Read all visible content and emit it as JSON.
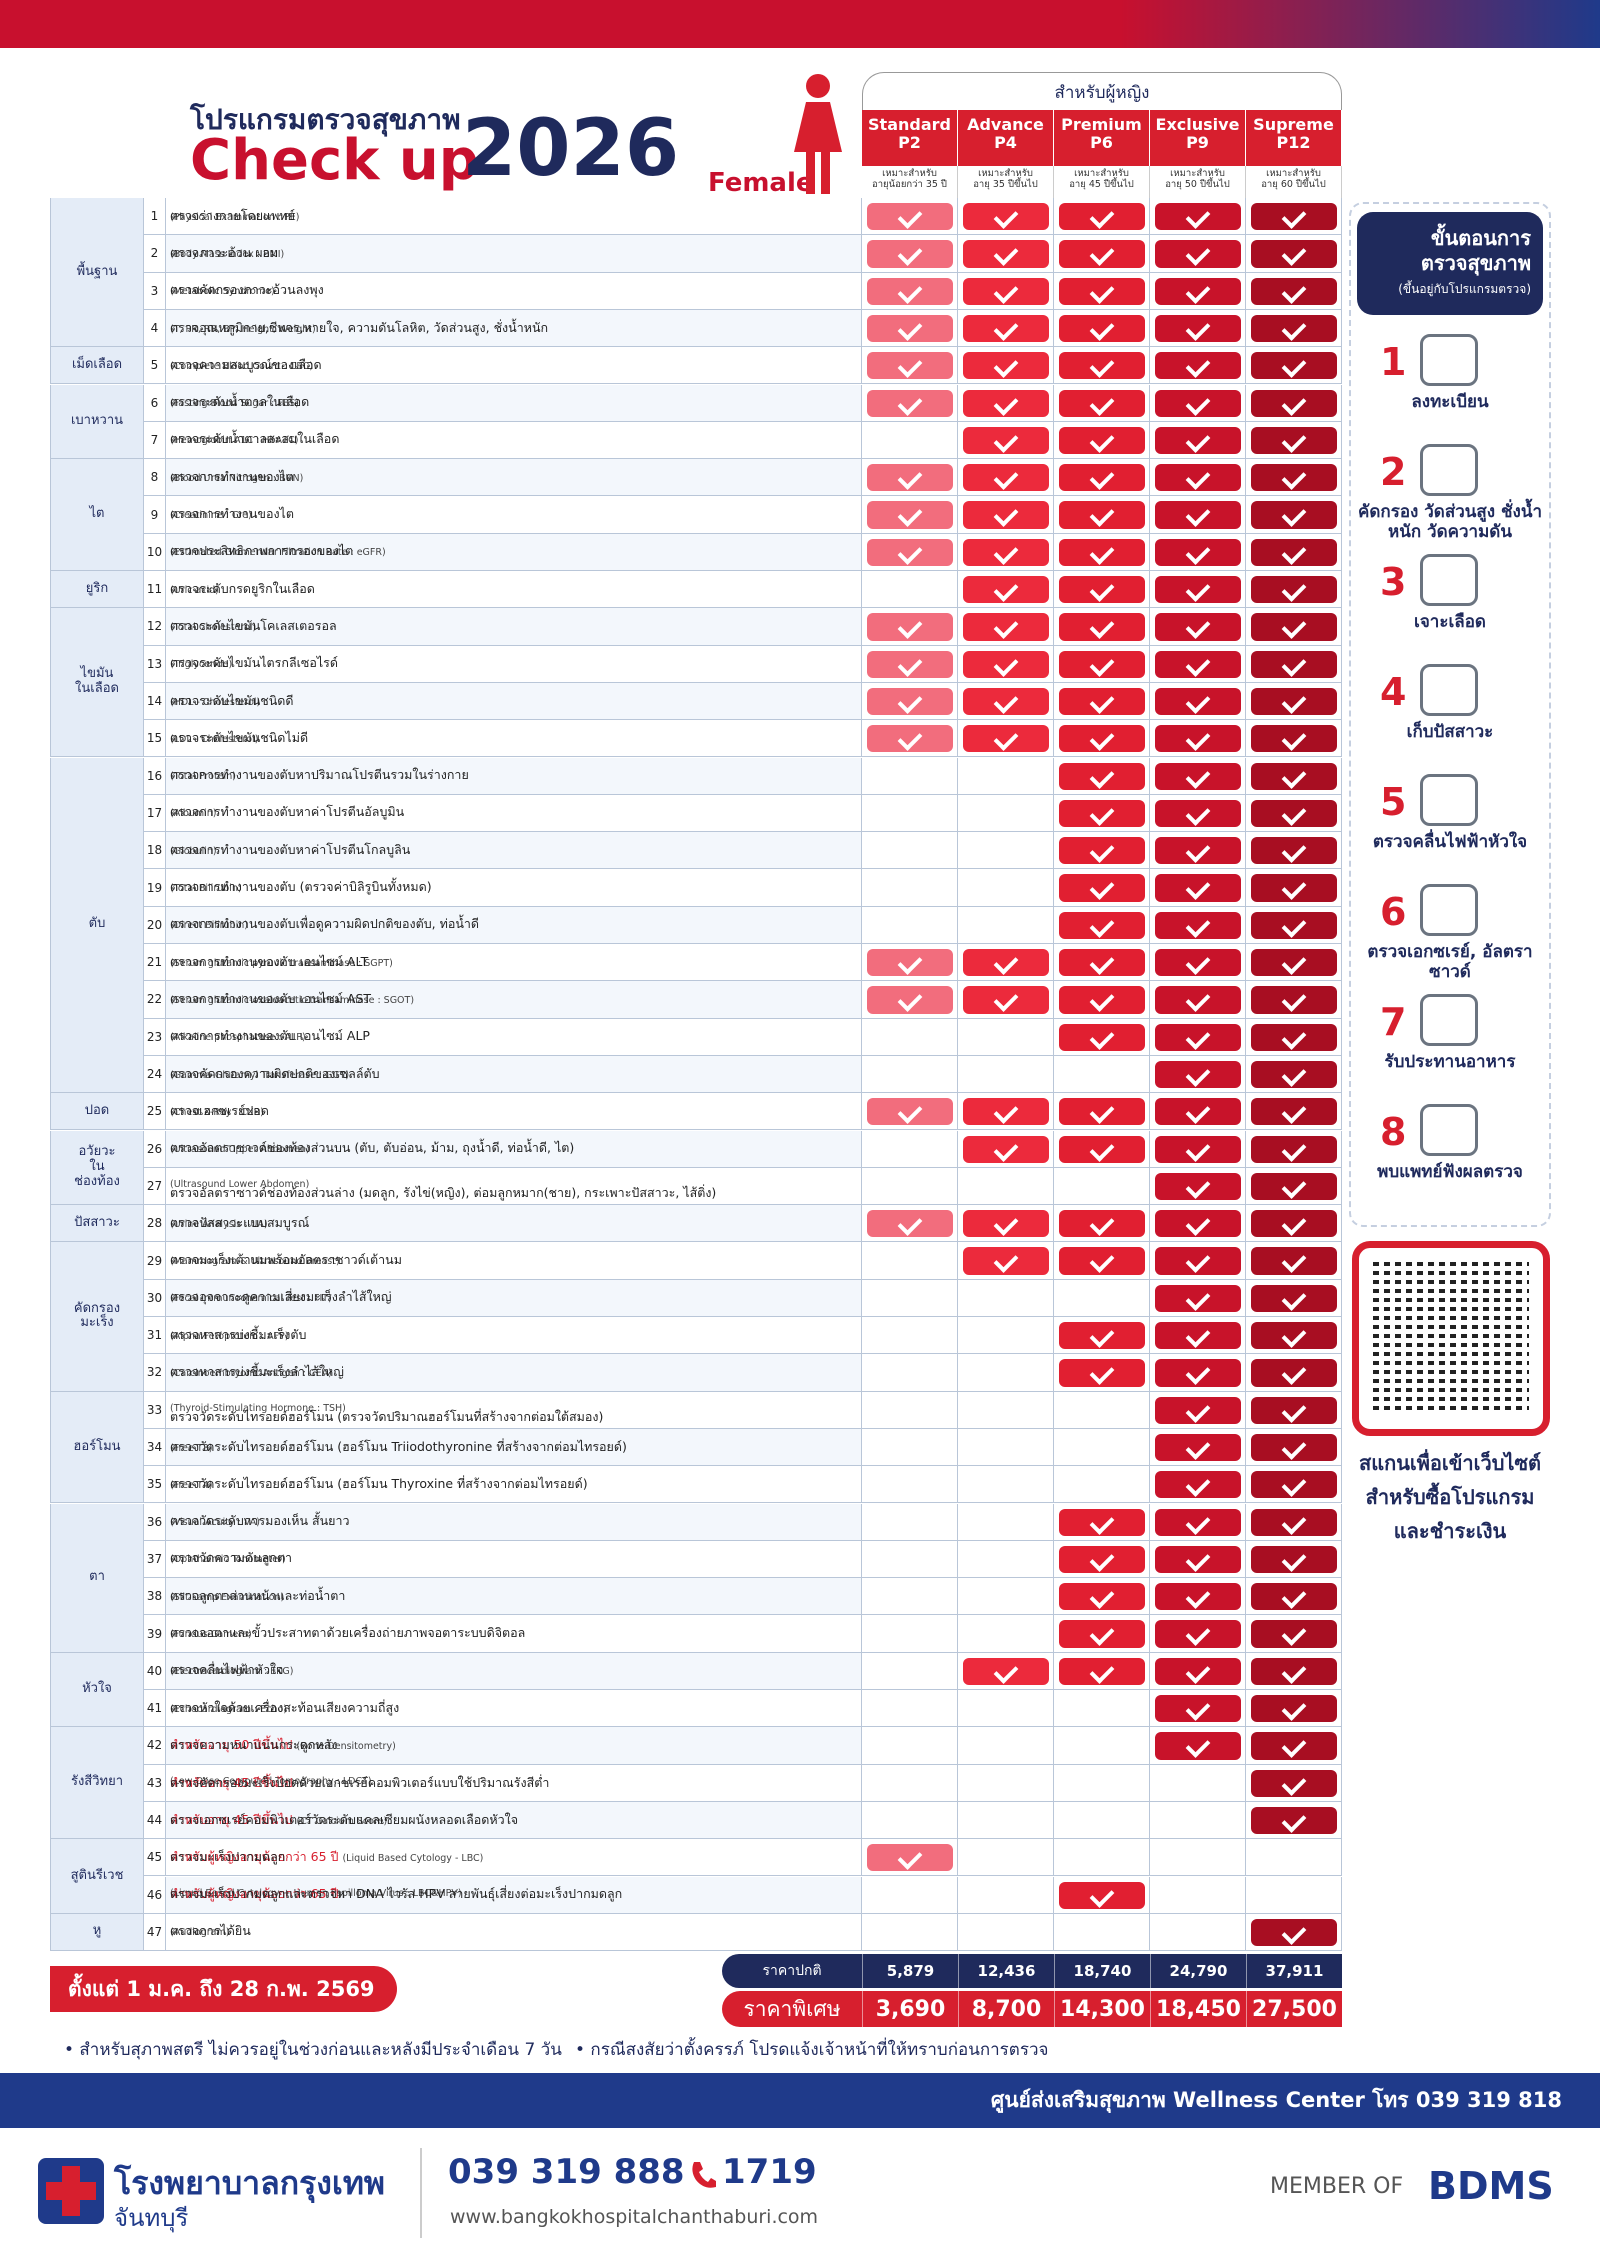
{
  "header": {
    "program": "โปรแกรมตรวจสุขภาพ",
    "title": "Check up",
    "year": "2026",
    "gender": "Female",
    "for_label": "สำหรับผู้หญิง"
  },
  "packages": [
    {
      "name": "Standard",
      "code": "P2",
      "sub": "เหมาะสำหรับ",
      "age": "อายุน้อยกว่า 35 ปี",
      "color": "#f26d7d"
    },
    {
      "name": "Advance",
      "code": "P4",
      "sub": "เหมาะสำหรับ",
      "age": "อายุ 35 ปีขึ้นไป",
      "color": "#ec2a3c"
    },
    {
      "name": "Premium",
      "code": "P6",
      "sub": "เหมาะสำหรับ",
      "age": "อายุ 45 ปีขึ้นไป",
      "color": "#e11f31"
    },
    {
      "name": "Exclusive",
      "code": "P9",
      "sub": "เหมาะสำหรับ",
      "age": "อายุ 50 ปีขึ้นไป",
      "color": "#c8132a"
    },
    {
      "name": "Supreme",
      "code": "P12",
      "sub": "เหมาะสำหรับ",
      "age": "อายุ 60 ปีขึ้นไป",
      "color": "#a80e22"
    }
  ],
  "groups": [
    {
      "label": "พื้นฐาน",
      "items": [
        {
          "no": 1,
          "th": "ตรวจร่างกายโดยแพทย์",
          "en": "(Physical Examination : PE)",
          "checks": [
            true,
            true,
            true,
            true,
            true
          ]
        },
        {
          "no": 2,
          "th": "ตรวจภาวะอ้วน ผอม",
          "en": "(Body Mass Index : BMI)",
          "checks": [
            true,
            true,
            true,
            true,
            true
          ]
        },
        {
          "no": 3,
          "th": "ตรวจคัดกรองภาวะอ้วนลงพุง",
          "en": "(Metabolic Syndrome)",
          "checks": [
            true,
            true,
            true,
            true,
            true
          ]
        },
        {
          "no": 4,
          "th": "ตรวจอุณหภูมิกาย,ชีพจร,หายใจ, ความดันโลหิต, วัดส่วนสูง, ชั่งน้ำหนัก",
          "en": "(T, PR, RR, BP, Height, Weight)",
          "checks": [
            true,
            true,
            true,
            true,
            true
          ]
        }
      ]
    },
    {
      "label": "เม็ดเลือด",
      "items": [
        {
          "no": 5,
          "th": "ตรวจความสมบูรณ์ของเลือด",
          "en": "(Complete Blood Count : CBC)",
          "checks": [
            true,
            true,
            true,
            true,
            true
          ]
        }
      ]
    },
    {
      "label": "เบาหวาน",
      "items": [
        {
          "no": 6,
          "th": "ตรวจระดับน้ำตาลในเลือด",
          "en": "(Fasting Blood Sugar : FBS)",
          "checks": [
            true,
            true,
            true,
            true,
            true
          ]
        },
        {
          "no": 7,
          "th": "ตรวจระดับน้ำตาลสะสมในเลือด",
          "en": "(Hemoglobin A1C : HbA1C)",
          "checks": [
            false,
            true,
            true,
            true,
            true
          ]
        }
      ]
    },
    {
      "label": "ไต",
      "items": [
        {
          "no": 8,
          "th": "ตรวจการทำงานของไต",
          "en": "(Blood Urea Nitrogen : BUN)",
          "checks": [
            true,
            true,
            true,
            true,
            true
          ]
        },
        {
          "no": 9,
          "th": "ตรวจการทำงานของไต",
          "en": "(Creatinine : Cre)",
          "checks": [
            true,
            true,
            true,
            true,
            true
          ]
        },
        {
          "no": 10,
          "th": "ตรวจประสิทธิภาพการกรองของไต",
          "en": "(Estimated Glomerular Filtration Rate : eGFR)",
          "checks": [
            true,
            true,
            true,
            true,
            true
          ]
        }
      ]
    },
    {
      "label": "ยูริก",
      "items": [
        {
          "no": 11,
          "th": "ตรวจระดับกรดยูริกในเลือด",
          "en": "(Uric acid)",
          "checks": [
            false,
            true,
            true,
            true,
            true
          ]
        }
      ]
    },
    {
      "label": "ไขมัน\nในเลือด",
      "items": [
        {
          "no": 12,
          "th": "ตรวจระดับไขมันโคเลสเตอรอล",
          "en": "(Total Cholesterol)",
          "checks": [
            true,
            true,
            true,
            true,
            true
          ]
        },
        {
          "no": 13,
          "th": "ตรวจระดับไขมันไตรกลีเซอไรด์",
          "en": "(Triglyceride)",
          "checks": [
            true,
            true,
            true,
            true,
            true
          ]
        },
        {
          "no": 14,
          "th": "ตรวจระดับไขมันชนิดดี",
          "en": "(HDL - Cholesterol)",
          "checks": [
            true,
            true,
            true,
            true,
            true
          ]
        },
        {
          "no": 15,
          "th": "ตรวจระดับไขมันชนิดไม่ดี",
          "en": "(LDL - Cholesterol)",
          "checks": [
            true,
            true,
            true,
            true,
            true
          ]
        }
      ]
    },
    {
      "label": "ตับ",
      "items": [
        {
          "no": 16,
          "th": "ตรวจการทำงานของตับหาปริมาณโปรตีนรวมในร่างกาย",
          "en": "(Total Protein)",
          "checks": [
            false,
            false,
            true,
            true,
            true
          ]
        },
        {
          "no": 17,
          "th": "ตรวจการทำงานของตับหาค่าโปรตีนอัลบูมิน",
          "en": "(Albumin)",
          "checks": [
            false,
            false,
            true,
            true,
            true
          ]
        },
        {
          "no": 18,
          "th": "ตรวจการทำงานของตับหาค่าโปรตีนโกลบูลิน",
          "en": "(Globulin)",
          "checks": [
            false,
            false,
            true,
            true,
            true
          ]
        },
        {
          "no": 19,
          "th": "ตรวจการทำงานของตับ (ตรวจค่าบิลิรูบินทั้งหมด)",
          "en": "(Total Bilirubin)",
          "checks": [
            false,
            false,
            true,
            true,
            true
          ]
        },
        {
          "no": 20,
          "th": "ตรวจการทำงานของตับเพื่อดูความผิดปกติของตับ, ท่อน้ำดี",
          "en": "(Direct Bilirubin)",
          "checks": [
            false,
            false,
            true,
            true,
            true
          ]
        },
        {
          "no": 21,
          "th": "ตรวจการทำงานของตับ เอนไซม์ ALT",
          "en": "(Serum glutamic pyruvic transaminase : SGPT)",
          "checks": [
            true,
            true,
            true,
            true,
            true
          ]
        },
        {
          "no": 22,
          "th": "ตรวจการทำงานของตับ เอนไซม์ AST",
          "en": "(Serum glutamic-oxaloacetic transaminase : SGOT)",
          "checks": [
            true,
            true,
            true,
            true,
            true
          ]
        },
        {
          "no": 23,
          "th": "ตรวจการทำงานของตับ เอนไซม์ ALP",
          "en": "(Alkaline phosphatase : ALP)",
          "checks": [
            false,
            false,
            true,
            true,
            true
          ]
        },
        {
          "no": 24,
          "th": "ตรวจคัดกรองความผิดปกติของเซลล์ตับ",
          "en": "(Gamma-Glutamyl Transferase : GGT)",
          "checks": [
            false,
            false,
            false,
            true,
            true
          ]
        }
      ]
    },
    {
      "label": "ปอด",
      "items": [
        {
          "no": 25,
          "th": "ตรวจเอกซเรย์ปอด",
          "en": "(Chest X-Ray : CXR)",
          "checks": [
            true,
            true,
            true,
            true,
            true
          ]
        }
      ]
    },
    {
      "label": "อวัยวะ\nใน\nช่องท้อง",
      "items": [
        {
          "no": 26,
          "th": "ตรวจอัลตราซาวด์ช่องท้องส่วนบน (ตับ, ตับอ่อน, ม้าม, ถุงน้ำดี, ท่อน้ำดี, ไต)",
          "en": "(Ultrasound Upper Abdomen)",
          "checks": [
            false,
            true,
            true,
            true,
            true
          ]
        },
        {
          "no": 27,
          "th": "ตรวจอัลตราซาวด์ช่องท้องส่วนล่าง (มดลูก, รังไข่(หญิง), ต่อมลูกหมาก(ชาย), กระเพาะปัสสาวะ, ไส้ติ่ง)",
          "en_below": "(Ultrasound Lower Abdomen)",
          "checks": [
            false,
            false,
            false,
            true,
            true
          ]
        }
      ]
    },
    {
      "label": "ปัสสาวะ",
      "items": [
        {
          "no": 28,
          "th": "ตรวจปัสสาวะแบบสมบูรณ์",
          "en": "(Urine Analysis : UA)",
          "checks": [
            true,
            true,
            true,
            true,
            true
          ]
        }
      ]
    },
    {
      "label": "คัดกรอง\nมะเร็ง",
      "items": [
        {
          "no": 29,
          "th": "ตรวจมะเร็งเต้านมพร้อมอัลตราซาวด์เต้านม",
          "en": "(Mammogram & Ultrasound Breast)",
          "checks": [
            false,
            true,
            true,
            true,
            true
          ]
        },
        {
          "no": 30,
          "th": "ตรวจอุจจาระดูความเสี่ยงมะเร็งลำไส้ใหญ่",
          "en": "(Fecal Immunochemical Test : FIT)",
          "checks": [
            false,
            false,
            false,
            true,
            true
          ]
        },
        {
          "no": 31,
          "th": "ตรวจหาสารบ่งชี้มะเร็งตับ",
          "en": "(Alpha Fetoprotein : AFP)",
          "checks": [
            false,
            false,
            true,
            true,
            true
          ]
        },
        {
          "no": 32,
          "th": "ตรวจหาสารบ่งชี้มะเร็งลำไส้ใหญ่",
          "en": "(Carcinoembryonic Antigen : CEA)",
          "checks": [
            false,
            false,
            true,
            true,
            true
          ]
        }
      ]
    },
    {
      "label": "ฮอร์โมน",
      "items": [
        {
          "no": 33,
          "th": "ตรวจวัดระดับไทรอยด์ฮอร์โมน (ตรวจวัดปริมาณฮอร์โมนที่สร้างจากต่อมใต้สมอง)",
          "en_below": "(Thyroid-Stimulating Hormone : TSH)",
          "checks": [
            false,
            false,
            false,
            true,
            true
          ]
        },
        {
          "no": 34,
          "th": "ตรวจวัดระดับไทรอยด์ฮอร์โมน (ฮอร์โมน Triiodothyronine ที่สร้างจากต่อมไทรอยด์)",
          "en": "(Free T3)",
          "checks": [
            false,
            false,
            false,
            true,
            true
          ]
        },
        {
          "no": 35,
          "th": "ตรวจวัดระดับไทรอยด์ฮอร์โมน (ฮอร์โมน Thyroxine ที่สร้างจากต่อมไทรอยด์)",
          "en": "(Free T4)",
          "checks": [
            false,
            false,
            false,
            true,
            true
          ]
        }
      ]
    },
    {
      "label": "ตา",
      "items": [
        {
          "no": 36,
          "th": "ตรวจวัดระดับการมองเห็น สั้นยาว",
          "en": "(Visual Acuity : VA)",
          "checks": [
            false,
            false,
            true,
            true,
            true
          ]
        },
        {
          "no": 37,
          "th": "ตรวจวัดความดันลูกตา",
          "en": "(Ophthalmic Tonometer)",
          "checks": [
            false,
            false,
            true,
            true,
            true
          ]
        },
        {
          "no": 38,
          "th": "ตรวจลูกตาส่วนหน้าและท่อน้ำตา",
          "en": "(Slit Lamp Examination)",
          "checks": [
            false,
            false,
            true,
            true,
            true
          ]
        },
        {
          "no": 39,
          "th": "ตรวจจอตาและขั้วประสาทตาด้วยเครื่องถ่ายภาพจอตาระบบดิจิตอล",
          "en": "(Fundus Camera)",
          "checks": [
            false,
            false,
            true,
            true,
            true
          ]
        }
      ]
    },
    {
      "label": "หัวใจ",
      "items": [
        {
          "no": 40,
          "th": "ตรวจคลื่นไฟฟ้าหัวใจ",
          "en": "(Electrocardiogram : EKG)",
          "checks": [
            false,
            true,
            true,
            true,
            true
          ]
        },
        {
          "no": 41,
          "th": "ตรวจหัวใจด้วยเครื่องสะท้อนเสียงความถี่สูง",
          "en": "(Echocardiogram : Echo)",
          "checks": [
            false,
            false,
            false,
            true,
            true
          ]
        }
      ]
    },
    {
      "label": "รังสีวิทยา",
      "items": [
        {
          "no": 42,
          "th": "ตรวจความหนาแน่นกระดูกหลัง",
          "note": "สำหรับอายุ 50 ปีขึ้นไป",
          "en": "(Bone Densitometry)",
          "checks": [
            false,
            false,
            false,
            true,
            true
          ]
        },
        {
          "no": 43,
          "th": "ตรวจคัดกรองมะเร็งปอดด้วยเอกซเรย์คอมพิวเตอร์แบบใช้ปริมาณรังสีต่ำ",
          "note": "สำหรับอายุ 45 ปีขึ้นไป",
          "en_below": "(Low-Dose Computed Tomography : LDCT)",
          "checks": [
            false,
            false,
            false,
            false,
            true
          ]
        },
        {
          "no": 44,
          "th": "ตรวจเอกซเรย์คอมพิวเตอร์วัดระดับแคลเซียมผนังหลอดเลือดหัวใจ",
          "note": "สำหรับอายุ 45 ปีขึ้นไป",
          "en": "(CT Calcium Score)",
          "checks": [
            false,
            false,
            false,
            false,
            true
          ]
        }
      ]
    },
    {
      "label": "สูตินรีเวช",
      "items": [
        {
          "no": 45,
          "th": "ตรวจมะเร็งปากมดลูก",
          "note": "สำหรับผู้หญิงอายุน้อยกว่า 65 ปี",
          "en": "(Liquid Based Cytology - LBC)",
          "checks": [
            true,
            false,
            false,
            false,
            false
          ]
        },
        {
          "no": 46,
          "th": "ตรวจมะเร็งปากมดลูกและตรวจหา DNA ไวรัส HPV สายพันธุ์เสี่ยงต่อมะเร็งปากมดลูก",
          "note": "สำหรับผู้หญิงอายุน้อยกว่า 65 ปี",
          "en_below": "(Liquid Based Cytology + Human Papilloma Virus : LBC&HPV)",
          "checks": [
            false,
            false,
            true,
            false,
            false
          ]
        }
      ]
    },
    {
      "label": "หู",
      "items": [
        {
          "no": 47,
          "th": "ตรวจการได้ยิน",
          "en": "(Audiogram)",
          "checks": [
            false,
            false,
            false,
            false,
            true
          ]
        }
      ]
    }
  ],
  "prices": {
    "normal_label": "ราคาปกติ",
    "normal": [
      "5,879",
      "12,436",
      "18,740",
      "24,790",
      "37,911"
    ],
    "special_label": "ราคาพิเศษ",
    "special": [
      "3,690",
      "8,700",
      "14,300",
      "18,450",
      "27,500"
    ]
  },
  "promo": "ตั้งแต่ 1 ม.ค. ถึง 28 ก.พ. 2569",
  "notes": [
    "• สำหรับสุภาพสตรี ไม่ควรอยู่ในช่วงก่อนและหลังมีประจำเดือน 7 วัน",
    "• กรณีสงสัยว่าตั้งครรภ์ โปรดแจ้งเจ้าหน้าที่ให้ทราบก่อนการตรวจ"
  ],
  "steps": {
    "title": "ขั้นตอนการตรวจสุขภาพ",
    "subtitle": "(ขึ้นอยู่กับโปรแกรมตรวจ)",
    "items": [
      {
        "number": 1,
        "label": "ลงทะเบียน"
      },
      {
        "number": 2,
        "label": "คัดกรอง วัดส่วนสูง ชั่งน้ำหนัก วัดความดัน"
      },
      {
        "number": 3,
        "label": "เจาะเลือด"
      },
      {
        "number": 4,
        "label": "เก็บปัสสาวะ"
      },
      {
        "number": 5,
        "label": "ตรวจคลื่นไฟฟ้าหัวใจ"
      },
      {
        "number": 6,
        "label": "ตรวจเอกซเรย์, อัลตราซาวด์"
      },
      {
        "number": 7,
        "label": "รับประทานอาหาร"
      },
      {
        "number": 8,
        "label": "พบแพทย์ฟังผลตรวจ"
      }
    ]
  },
  "qr_caption": [
    "สแกนเพื่อเข้าเว็บไซต์",
    "สำหรับซื้อโปรแกรม",
    "และชำระเงิน"
  ],
  "wellness": "ศูนย์ส่งเสริมสุขภาพ Wellness Center โทร 039 319 818",
  "footer": {
    "hospital": "โรงพยาบาลกรุงเทพ",
    "branch": "จันทบุรี",
    "phone": "039 319 888",
    "hotline": "1719",
    "website": "www.bangkokhospitalchanthaburi.com",
    "member": "MEMBER OF",
    "group": "BDMS"
  }
}
